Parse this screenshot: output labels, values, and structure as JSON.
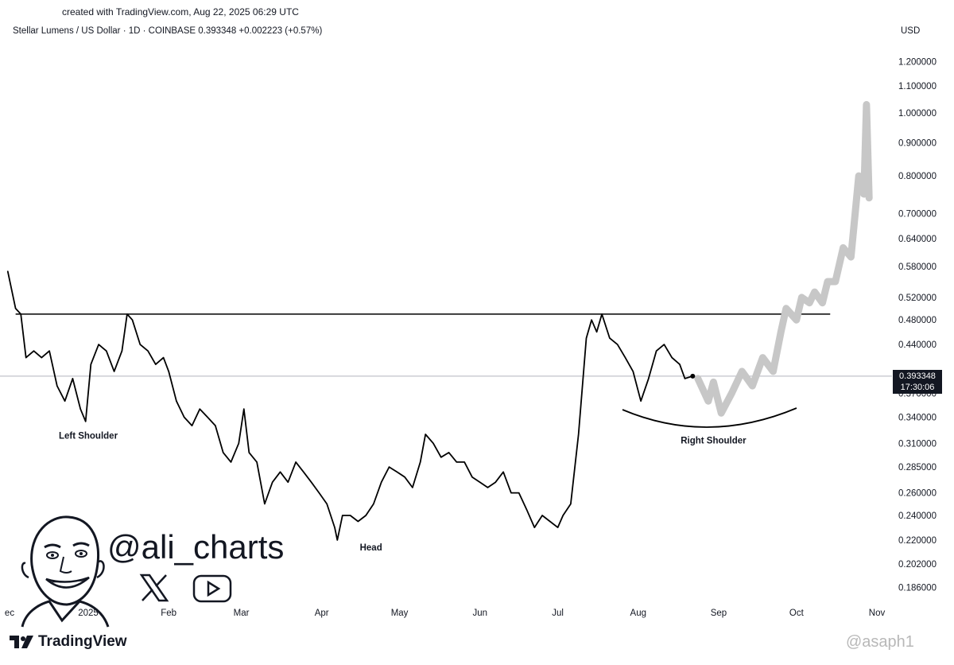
{
  "header": {
    "credit": "created with TradingView.com, Aug 22, 2025 06:29 UTC",
    "symbol_line": "Stellar Lumens / US Dollar · 1D · COINBASE  0.393348  +0.002223 (+0.57%)",
    "currency": "USD"
  },
  "price_label": {
    "price": "0.393348",
    "countdown": "17:30:06"
  },
  "branding": {
    "handle": "@ali_charts",
    "tv_name": "TradingView",
    "watermark": "@asaph1"
  },
  "icons": [
    "avatar-caricature",
    "x-logo-icon",
    "youtube-icon",
    "tradingview-logo-icon"
  ],
  "chart_data": {
    "type": "line",
    "yscale": "log",
    "y_ticks": [
      "1.200000",
      "1.100000",
      "1.000000",
      "0.900000",
      "0.800000",
      "0.700000",
      "0.640000",
      "0.580000",
      "0.520000",
      "0.480000",
      "0.440000",
      "0.370000",
      "0.340000",
      "0.310000",
      "0.285000",
      "0.260000",
      "0.240000",
      "0.220000",
      "0.202000",
      "0.186000"
    ],
    "x_ticks": [
      "ec",
      "2025",
      "Feb",
      "Mar",
      "Apr",
      "May",
      "Jun",
      "Jul",
      "Aug",
      "Sep",
      "Oct",
      "Nov"
    ],
    "series": [
      {
        "style": "price",
        "color": "#000000",
        "points": [
          [
            "2024-12-01",
            0.57
          ],
          [
            "2024-12-04",
            0.5
          ],
          [
            "2024-12-06",
            0.49
          ],
          [
            "2024-12-08",
            0.42
          ],
          [
            "2024-12-11",
            0.43
          ],
          [
            "2024-12-14",
            0.42
          ],
          [
            "2024-12-17",
            0.43
          ],
          [
            "2024-12-20",
            0.38
          ],
          [
            "2024-12-23",
            0.36
          ],
          [
            "2024-12-26",
            0.39
          ],
          [
            "2024-12-29",
            0.35
          ],
          [
            "2024-12-31",
            0.335
          ],
          [
            "2025-01-02",
            0.41
          ],
          [
            "2025-01-05",
            0.44
          ],
          [
            "2025-01-08",
            0.43
          ],
          [
            "2025-01-11",
            0.4
          ],
          [
            "2025-01-14",
            0.43
          ],
          [
            "2025-01-16",
            0.49
          ],
          [
            "2025-01-18",
            0.48
          ],
          [
            "2025-01-21",
            0.44
          ],
          [
            "2025-01-24",
            0.43
          ],
          [
            "2025-01-27",
            0.41
          ],
          [
            "2025-01-30",
            0.42
          ],
          [
            "2025-02-01",
            0.4
          ],
          [
            "2025-02-04",
            0.36
          ],
          [
            "2025-02-07",
            0.34
          ],
          [
            "2025-02-10",
            0.33
          ],
          [
            "2025-02-13",
            0.35
          ],
          [
            "2025-02-16",
            0.34
          ],
          [
            "2025-02-19",
            0.33
          ],
          [
            "2025-02-22",
            0.3
          ],
          [
            "2025-02-25",
            0.29
          ],
          [
            "2025-02-28",
            0.31
          ],
          [
            "2025-03-02",
            0.35
          ],
          [
            "2025-03-04",
            0.3
          ],
          [
            "2025-03-07",
            0.29
          ],
          [
            "2025-03-10",
            0.25
          ],
          [
            "2025-03-13",
            0.27
          ],
          [
            "2025-03-16",
            0.28
          ],
          [
            "2025-03-19",
            0.27
          ],
          [
            "2025-03-22",
            0.29
          ],
          [
            "2025-03-25",
            0.28
          ],
          [
            "2025-03-28",
            0.27
          ],
          [
            "2025-03-31",
            0.26
          ],
          [
            "2025-04-03",
            0.25
          ],
          [
            "2025-04-06",
            0.23
          ],
          [
            "2025-04-07",
            0.22
          ],
          [
            "2025-04-09",
            0.24
          ],
          [
            "2025-04-12",
            0.24
          ],
          [
            "2025-04-15",
            0.235
          ],
          [
            "2025-04-18",
            0.24
          ],
          [
            "2025-04-21",
            0.25
          ],
          [
            "2025-04-24",
            0.27
          ],
          [
            "2025-04-27",
            0.285
          ],
          [
            "2025-04-30",
            0.28
          ],
          [
            "2025-05-03",
            0.275
          ],
          [
            "2025-05-06",
            0.265
          ],
          [
            "2025-05-09",
            0.29
          ],
          [
            "2025-05-11",
            0.32
          ],
          [
            "2025-05-14",
            0.31
          ],
          [
            "2025-05-17",
            0.295
          ],
          [
            "2025-05-20",
            0.3
          ],
          [
            "2025-05-23",
            0.29
          ],
          [
            "2025-05-26",
            0.29
          ],
          [
            "2025-05-29",
            0.275
          ],
          [
            "2025-06-01",
            0.27
          ],
          [
            "2025-06-04",
            0.265
          ],
          [
            "2025-06-07",
            0.27
          ],
          [
            "2025-06-10",
            0.28
          ],
          [
            "2025-06-13",
            0.26
          ],
          [
            "2025-06-16",
            0.26
          ],
          [
            "2025-06-19",
            0.245
          ],
          [
            "2025-06-22",
            0.23
          ],
          [
            "2025-06-25",
            0.24
          ],
          [
            "2025-06-28",
            0.235
          ],
          [
            "2025-07-01",
            0.23
          ],
          [
            "2025-07-03",
            0.24
          ],
          [
            "2025-07-06",
            0.25
          ],
          [
            "2025-07-09",
            0.32
          ],
          [
            "2025-07-12",
            0.45
          ],
          [
            "2025-07-14",
            0.48
          ],
          [
            "2025-07-16",
            0.46
          ],
          [
            "2025-07-18",
            0.49
          ],
          [
            "2025-07-21",
            0.45
          ],
          [
            "2025-07-24",
            0.44
          ],
          [
            "2025-07-27",
            0.42
          ],
          [
            "2025-07-30",
            0.4
          ],
          [
            "2025-08-02",
            0.36
          ],
          [
            "2025-08-05",
            0.39
          ],
          [
            "2025-08-08",
            0.43
          ],
          [
            "2025-08-11",
            0.44
          ],
          [
            "2025-08-14",
            0.42
          ],
          [
            "2025-08-17",
            0.41
          ],
          [
            "2025-08-19",
            0.39
          ],
          [
            "2025-08-22",
            0.393348
          ]
        ]
      },
      {
        "style": "projection",
        "color": "#c7c7c7",
        "points": [
          [
            "2025-08-24",
            0.39
          ],
          [
            "2025-08-28",
            0.36
          ],
          [
            "2025-08-30",
            0.385
          ],
          [
            "2025-09-02",
            0.345
          ],
          [
            "2025-09-06",
            0.37
          ],
          [
            "2025-09-10",
            0.4
          ],
          [
            "2025-09-14",
            0.38
          ],
          [
            "2025-09-18",
            0.42
          ],
          [
            "2025-09-22",
            0.4
          ],
          [
            "2025-09-25",
            0.46
          ],
          [
            "2025-09-27",
            0.5
          ],
          [
            "2025-10-01",
            0.48
          ],
          [
            "2025-10-03",
            0.52
          ],
          [
            "2025-10-06",
            0.51
          ],
          [
            "2025-10-08",
            0.53
          ],
          [
            "2025-10-11",
            0.51
          ],
          [
            "2025-10-13",
            0.55
          ],
          [
            "2025-10-16",
            0.55
          ],
          [
            "2025-10-19",
            0.62
          ],
          [
            "2025-10-22",
            0.6
          ],
          [
            "2025-10-25",
            0.8
          ],
          [
            "2025-10-27",
            0.75
          ],
          [
            "2025-10-28",
            1.03
          ],
          [
            "2025-10-29",
            0.74
          ]
        ]
      }
    ],
    "neckline": {
      "price": 0.49,
      "from": "2024-12-04",
      "to": "2025-10-14"
    },
    "current_price_line": 0.393348,
    "annotations": [
      {
        "text": "Left Shoulder",
        "date": "2025-01-01",
        "price": 0.315
      },
      {
        "text": "Head",
        "date": "2025-04-20",
        "price": 0.212
      },
      {
        "text": "Right Shoulder",
        "date": "2025-08-30",
        "price": 0.31
      }
    ],
    "grid": false
  }
}
